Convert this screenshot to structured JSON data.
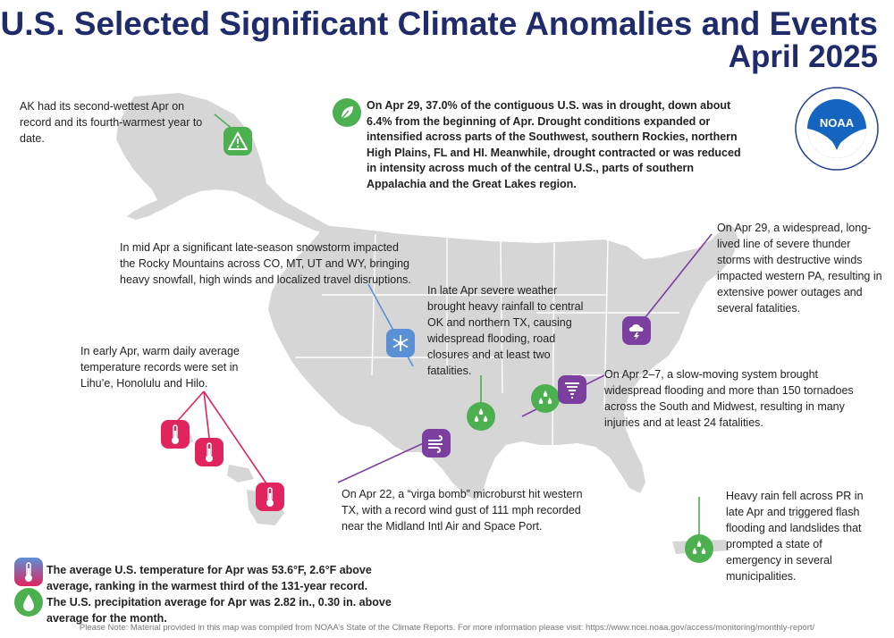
{
  "title": "U.S. Selected Significant Climate Anomalies and Events",
  "subtitle": "April 2025",
  "logo": {
    "text": "NOAA",
    "ring_text_top": "NATIONAL OCEANIC AND ATMOSPHERIC ADMINISTRATION",
    "ring_text_bottom": "U.S. DEPARTMENT OF COMMERCE"
  },
  "colors": {
    "title": "#1f2b6b",
    "land": "#d6d6d6",
    "drought_green": "#4caf50",
    "heat_red": "#e0245e",
    "storm_purple": "#7b3fa0",
    "snow_blue": "#5b8fd6"
  },
  "events": {
    "alaska": {
      "text": "AK had its second-wettest Apr on record and its fourth-warmest year to date.",
      "icon": "warning-icon"
    },
    "drought": {
      "text": "On Apr 29, 37.0% of the contiguous U.S. was in drought, down about 6.4% from the beginning of Apr. Drought conditions expanded or intensified across parts of the Southwest, southern Rockies, northern High Plains, FL and HI. Meanwhile, drought contracted or was reduced in intensity across much of the central U.S., parts of southern Appalachia and the Great Lakes region.",
      "icon": "leaf-icon"
    },
    "pennsylvania": {
      "text": "On Apr 29, a widespread, long-lived line of severe thunder storms with destructive winds impacted western PA, resulting in extensive power outages and several fatalities.",
      "icon": "thunderstorm-icon"
    },
    "rockies_snow": {
      "text": "In mid Apr a significant late-season snowstorm impacted the Rocky Mountains across CO, MT, UT and WY, bringing heavy snowfall, high winds and localized travel disruptions.",
      "icon": "snowflake-icon"
    },
    "oklahoma_texas": {
      "text": "In late Apr severe weather brought heavy rainfall to central OK and northern TX, causing widespread flooding, road closures and at least two fatalities.",
      "icon": "raindrops-icon"
    },
    "hawaii": {
      "text": "In early Apr, warm daily average temperature records were set in Lihu’e, Honolulu and Hilo.",
      "icon": "thermometer-icon"
    },
    "south_midwest": {
      "text": "On Apr 2–7, a slow-moving system brought widespread flooding and more than 150 tornadoes across the South and Midwest, resulting in many injuries and at least 24 fatalities.",
      "icons": [
        "tornado-icon",
        "raindrops-icon"
      ]
    },
    "west_texas": {
      "text": "On Apr 22, a “virga bomb” microburst hit western TX, with a record wind gust of 111 mph recorded near the Midland Intl Air and Space Port.",
      "icon": "wind-icon"
    },
    "puerto_rico": {
      "text": "Heavy rain fell across PR in late Apr and triggered flash flooding and landslides that prompted a state of emergency in several municipalities.",
      "icon": "raindrops-icon"
    }
  },
  "summary": {
    "temperature": "The average U.S. temperature for Apr was 53.6°F, 2.6°F above average, ranking in the warmest third of the 131-year record.",
    "precipitation": "The U.S. precipitation average for Apr was 2.82 in., 0.30 in. above average for the month."
  },
  "footnote": "Please Note: Material provided in this map was compiled from NOAA’s State of the Climate Reports. For more information please visit: https://www.ncei.noaa.gov/access/monitoring/monthly-report/"
}
